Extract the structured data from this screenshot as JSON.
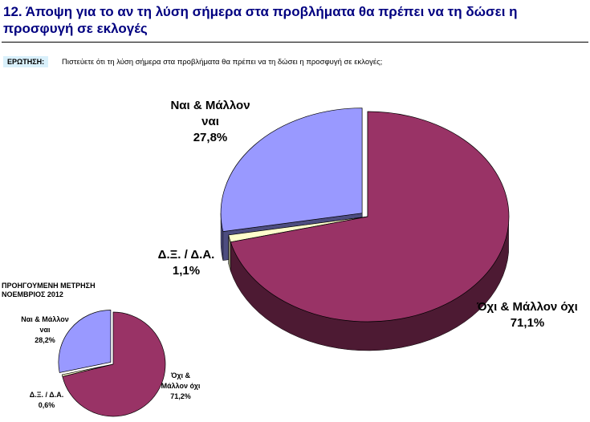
{
  "title": "12.   Άποψη για το αν τη λύση σήμερα στα προβλήματα θα πρέπει να τη δώσει η προσφυγή σε εκλογές",
  "question_label": "ΕΡΩΤΗΣΗ:",
  "question": "Πιστεύετε ότι τη λύση σήμερα στα προβλήματα θα πρέπει να τη δώσει η προσφυγή σε εκλογές;",
  "chart_data": [
    {
      "type": "pie",
      "categories": [
        "Ναι & Μάλλον ναι",
        "Δ.Ξ. / Δ.Α.",
        "Όχι & Μάλλον όχι"
      ],
      "values": [
        27.8,
        1.1,
        71.1
      ],
      "value_labels": [
        "27,8%",
        "1,1%",
        "71,1%"
      ],
      "colors": [
        "#9999ff",
        "#ffffcc",
        "#993366"
      ]
    },
    {
      "type": "pie",
      "title": "ΠΡΟΗΓΟΥΜΕΝΗ ΜΕΤΡΗΣΗ ΝΟΕΜΒΡΙΟΣ 2012",
      "categories": [
        "Ναι & Μάλλον ναι",
        "Δ.Ξ. / Δ.Α.",
        "Όχι & Μάλλον όχι"
      ],
      "values": [
        28.2,
        0.6,
        71.2
      ],
      "value_labels": [
        "28,2%",
        "0,6%",
        "71,2%"
      ],
      "colors": [
        "#9999ff",
        "#ffffcc",
        "#993366"
      ]
    }
  ]
}
